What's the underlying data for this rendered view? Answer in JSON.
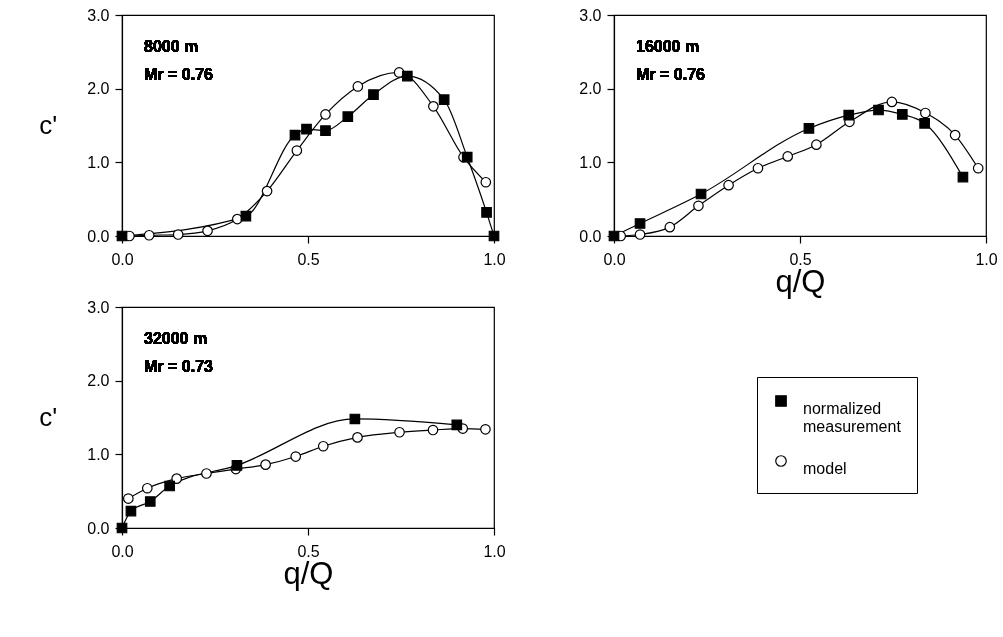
{
  "chart_data": [
    {
      "type": "line",
      "ylabel": "c'",
      "annotations": [
        "8000 m",
        "Mr = 0.76"
      ],
      "xlim": [
        0,
        1
      ],
      "ylim": [
        0,
        3
      ],
      "xticks": [
        {
          "value": 0,
          "label": "0.0"
        },
        {
          "value": 0.5,
          "label": "0.5"
        },
        {
          "value": 1,
          "label": "1.0"
        }
      ],
      "yticks": [
        {
          "value": 0,
          "label": "0.0"
        },
        {
          "value": 1,
          "label": "1.0"
        },
        {
          "value": 2,
          "label": "2.0"
        },
        {
          "value": 3,
          "label": "3.0"
        }
      ],
      "grid": false,
      "legend": "bottom right",
      "series": [
        {
          "name": "normalized measurement",
          "color": "#000000",
          "marker": "square",
          "x": [
            0,
            0.333,
            0.465,
            0.496,
            0.547,
            0.607,
            0.676,
            0.767,
            0.866,
            0.928,
            0.98,
            1.0
          ],
          "values": [
            0,
            0.27,
            1.37,
            1.45,
            1.43,
            1.62,
            1.92,
            2.17,
            1.85,
            1.07,
            0.32,
            0
          ]
        },
        {
          "name": "model",
          "color": "#000000",
          "marker": "circle",
          "x": [
            0.02,
            0.073,
            0.151,
            0.23,
            0.31,
            0.39,
            0.47,
            0.547,
            0.634,
            0.745,
            0.837,
            0.918,
            0.978
          ],
          "values": [
            0,
            0.01,
            0.02,
            0.07,
            0.23,
            0.61,
            1.16,
            1.65,
            2.03,
            2.22,
            1.76,
            1.07,
            0.73
          ]
        }
      ]
    },
    {
      "type": "line",
      "xlabel": "q/Q",
      "annotations": [
        "16000 m",
        "Mr = 0.76"
      ],
      "xlim": [
        0,
        1
      ],
      "ylim": [
        0,
        3
      ],
      "xticks": [
        {
          "value": 0,
          "label": "0.0"
        },
        {
          "value": 0.5,
          "label": "0.5"
        },
        {
          "value": 1,
          "label": "1.0"
        }
      ],
      "yticks": [
        {
          "value": 0,
          "label": "0.0"
        },
        {
          "value": 1,
          "label": "1.0"
        },
        {
          "value": 2,
          "label": "2.0"
        },
        {
          "value": 3,
          "label": "3.0"
        }
      ],
      "grid": false,
      "legend": "bottom right",
      "series": [
        {
          "name": "normalized measurement",
          "color": "#000000",
          "marker": "square",
          "x": [
            0,
            0.07,
            0.234,
            0.524,
            0.631,
            0.711,
            0.775,
            0.835,
            0.938
          ],
          "values": [
            0,
            0.17,
            0.57,
            1.46,
            1.64,
            1.71,
            1.65,
            1.53,
            0.8
          ]
        },
        {
          "name": "model",
          "color": "#000000",
          "marker": "circle",
          "x": [
            0.018,
            0.07,
            0.15,
            0.227,
            0.308,
            0.387,
            0.467,
            0.544,
            0.633,
            0.747,
            0.837,
            0.917,
            0.979
          ],
          "values": [
            0,
            0.02,
            0.12,
            0.41,
            0.69,
            0.92,
            1.08,
            1.24,
            1.55,
            1.82,
            1.67,
            1.37,
            0.92
          ]
        }
      ]
    },
    {
      "type": "line",
      "xlabel": "q/Q",
      "ylabel": "c'",
      "annotations": [
        "32000 m",
        "Mr = 0.73"
      ],
      "xlim": [
        0,
        1
      ],
      "ylim": [
        0,
        3
      ],
      "xticks": [
        {
          "value": 0,
          "label": "0.0"
        },
        {
          "value": 0.5,
          "label": "0.5"
        },
        {
          "value": 1,
          "label": "1.0"
        }
      ],
      "yticks": [
        {
          "value": 0,
          "label": "0.0"
        },
        {
          "value": 1,
          "label": "1.0"
        },
        {
          "value": 2,
          "label": "2.0"
        },
        {
          "value": 3,
          "label": "3.0"
        }
      ],
      "grid": false,
      "legend": "bottom right",
      "series": [
        {
          "name": "normalized measurement",
          "color": "#000000",
          "marker": "square",
          "x": [
            0,
            0.024,
            0.076,
            0.128,
            0.309,
            0.626,
            0.9
          ],
          "values": [
            0,
            0.23,
            0.36,
            0.57,
            0.85,
            1.48,
            1.4
          ]
        },
        {
          "name": "model",
          "color": "#000000",
          "marker": "circle",
          "x": [
            0.017,
            0.068,
            0.147,
            0.227,
            0.306,
            0.386,
            0.467,
            0.541,
            0.633,
            0.746,
            0.836,
            0.916,
            0.977
          ],
          "values": [
            0.4,
            0.54,
            0.67,
            0.74,
            0.8,
            0.86,
            0.97,
            1.11,
            1.23,
            1.3,
            1.33,
            1.35,
            1.34
          ]
        }
      ]
    }
  ]
}
